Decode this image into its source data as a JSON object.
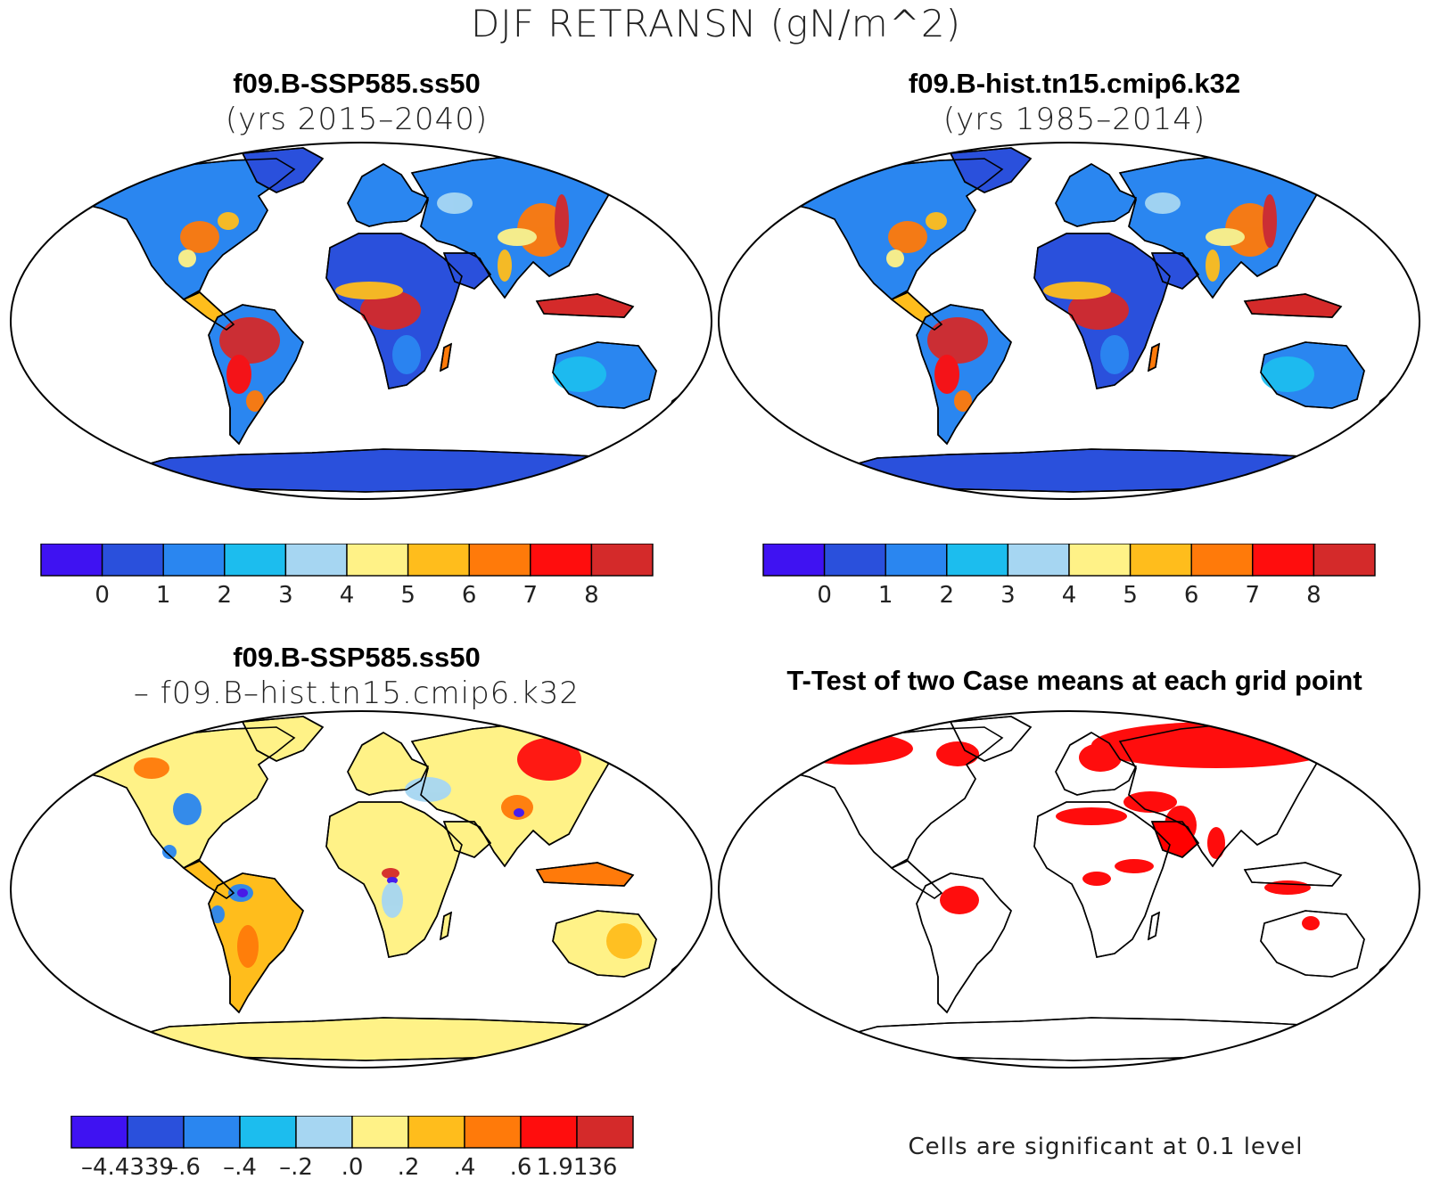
{
  "figure": {
    "title": "DJF RETRANSN (gN/m^2)"
  },
  "panels": [
    {
      "id": "top-left",
      "title": "f09.B-SSP585.ss50",
      "subtitle": "(yrs 2015–2040)",
      "colorbar": {
        "colors": [
          "#3f12f2",
          "#2a50dc",
          "#2a86f0",
          "#1cbdee",
          "#a6d6f2",
          "#fff287",
          "#ffbd1c",
          "#ff7a0a",
          "#ff0d0d",
          "#d42a2a"
        ],
        "tick_labels": [
          "0",
          "1",
          "2",
          "3",
          "4",
          "5",
          "6",
          "7",
          "8"
        ]
      }
    },
    {
      "id": "top-right",
      "title": "f09.B-hist.tn15.cmip6.k32",
      "subtitle": "(yrs 1985–2014)",
      "colorbar": {
        "colors": [
          "#3f12f2",
          "#2a50dc",
          "#2a86f0",
          "#1cbdee",
          "#a6d6f2",
          "#fff287",
          "#ffbd1c",
          "#ff7a0a",
          "#ff0d0d",
          "#d42a2a"
        ],
        "tick_labels": [
          "0",
          "1",
          "2",
          "3",
          "4",
          "5",
          "6",
          "7",
          "8"
        ]
      }
    },
    {
      "id": "bottom-left",
      "title": "f09.B-SSP585.ss50",
      "subtitle": "– f09.B–hist.tn15.cmip6.k32",
      "colorbar": {
        "colors": [
          "#3f12f2",
          "#2a50dc",
          "#2a86f0",
          "#1cbdee",
          "#a6d6f2",
          "#fff287",
          "#ffbd1c",
          "#ff7a0a",
          "#ff0d0d",
          "#d42a2a"
        ],
        "tick_labels": [
          "–4.4339",
          "–.6",
          "–.4",
          "–.2",
          ".0",
          ".2",
          ".4",
          ".6",
          "1.9136"
        ]
      }
    },
    {
      "id": "bottom-right",
      "title": "T-Test of two Case means at each grid point",
      "footnote": "Cells are significant at 0.1 level",
      "significance_color": "#ff0000"
    }
  ]
}
